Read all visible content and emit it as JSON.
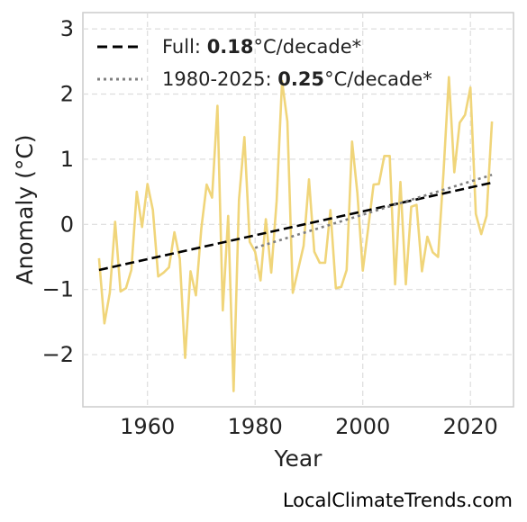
{
  "chart_data": {
    "type": "line",
    "title": "",
    "xlabel": "Year",
    "ylabel": "Anomaly (°C)",
    "xlim": [
      1948,
      2028
    ],
    "ylim": [
      -2.8,
      3.25
    ],
    "x_ticks": [
      1960,
      1980,
      2000,
      2020
    ],
    "y_ticks": [
      3,
      2,
      1,
      0,
      -1,
      -2
    ],
    "y_tick_labels": [
      "3",
      "2",
      "1",
      "0",
      "−1",
      "−2"
    ],
    "grid": true,
    "legend_position": "top-left",
    "series": [
      {
        "name": "",
        "color": "#f0d57a",
        "x": [
          1951,
          1952,
          1953,
          1954,
          1955,
          1956,
          1957,
          1958,
          1959,
          1960,
          1961,
          1962,
          1963,
          1964,
          1965,
          1966,
          1967,
          1968,
          1969,
          1970,
          1971,
          1972,
          1973,
          1974,
          1975,
          1976,
          1977,
          1978,
          1979,
          1980,
          1981,
          1982,
          1983,
          1984,
          1985,
          1986,
          1987,
          1988,
          1989,
          1990,
          1991,
          1992,
          1993,
          1994,
          1995,
          1996,
          1997,
          1998,
          1999,
          2000,
          2001,
          2002,
          2003,
          2004,
          2005,
          2006,
          2007,
          2008,
          2009,
          2010,
          2011,
          2012,
          2013,
          2014,
          2015,
          2016,
          2017,
          2018,
          2019,
          2020,
          2021,
          2022,
          2023,
          2024
        ],
        "y": [
          -0.52,
          -1.52,
          -1.05,
          0.04,
          -1.03,
          -0.98,
          -0.7,
          0.5,
          -0.04,
          0.62,
          0.22,
          -0.8,
          -0.74,
          -0.66,
          -0.12,
          -0.53,
          -2.05,
          -0.72,
          -1.09,
          -0.06,
          0.61,
          0.41,
          1.82,
          -1.32,
          0.13,
          -2.56,
          0.38,
          1.34,
          -0.27,
          -0.42,
          -0.86,
          0.08,
          -0.74,
          0.36,
          2.2,
          1.58,
          -1.05,
          -0.69,
          -0.33,
          0.69,
          -0.42,
          -0.59,
          -0.59,
          0.22,
          -0.98,
          -0.96,
          -0.7,
          1.27,
          0.48,
          -0.71,
          -0.06,
          0.61,
          0.62,
          1.05,
          1.05,
          -0.92,
          0.65,
          -0.92,
          0.27,
          0.3,
          -0.72,
          -0.19,
          -0.43,
          -0.5,
          0.79,
          2.26,
          0.8,
          1.56,
          1.68,
          2.1,
          0.16,
          -0.15,
          0.13,
          1.58
        ]
      }
    ],
    "trends": [
      {
        "name": "Full",
        "value": "0.18",
        "unit": "°C/decade*",
        "style": "dashed",
        "color": "#000000",
        "x": [
          1951,
          2024
        ],
        "y": [
          -0.7,
          0.64
        ]
      },
      {
        "name": "1980-2025",
        "value": "0.25",
        "unit": "°C/decade*",
        "style": "dotted",
        "color": "#7f7f7f",
        "x": [
          1980,
          2024
        ],
        "y": [
          -0.36,
          0.76
        ]
      }
    ]
  },
  "credit": "LocalClimateTrends.com"
}
